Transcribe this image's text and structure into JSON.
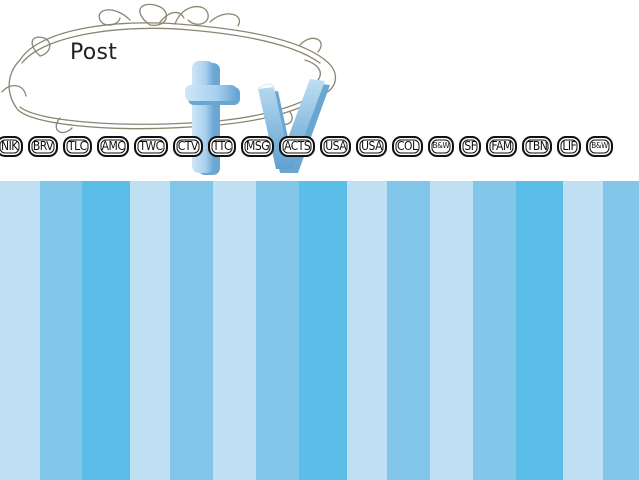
{
  "site": {
    "title": "Post"
  },
  "logo": {
    "letters": [
      "t",
      "v"
    ],
    "icon": "3d-tv-letters-logo"
  },
  "channels": [
    {
      "label": "NIK"
    },
    {
      "label": "BRV"
    },
    {
      "label": "TLC"
    },
    {
      "label": "AMC"
    },
    {
      "label": "TWC"
    },
    {
      "label": "CTV"
    },
    {
      "label": "TTC"
    },
    {
      "label": "MSG"
    },
    {
      "label": "ACTS"
    },
    {
      "label": "USA"
    },
    {
      "label": "USA"
    },
    {
      "label": "COL"
    },
    {
      "label": "B&W"
    },
    {
      "label": "SF"
    },
    {
      "label": "FAM"
    },
    {
      "label": "TBN"
    },
    {
      "label": "LIF"
    },
    {
      "label": "B&W"
    }
  ],
  "colors": {
    "header_bg": "#ffffff",
    "ornament": "#8a8672",
    "logo_light": "#cfe6f6",
    "logo_mid": "#9fcbea",
    "logo_dark": "#6aa6d2",
    "stripe_palette": [
      "#bfdff2",
      "#82c6ea",
      "#5bbde8"
    ]
  },
  "background": {
    "pattern": "vertical-stripes",
    "stripe_tones": [
      0,
      1,
      2,
      0,
      1,
      0,
      1,
      2,
      0,
      1,
      0,
      1,
      2,
      0,
      1
    ]
  }
}
